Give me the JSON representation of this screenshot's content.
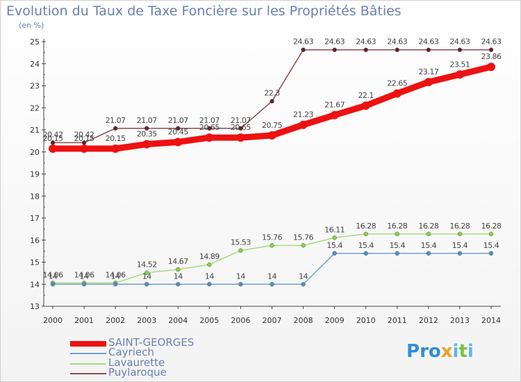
{
  "header": {
    "title": "Evolution du Taux de Taxe Foncière sur les Propriétés Bâties",
    "unit": "(en %)"
  },
  "logo": {
    "text": "Proxiti"
  },
  "chart_data": {
    "type": "line",
    "title": "Evolution du Taux de Taxe Foncière sur les Propriétés Bâties",
    "ylabel": "(en %)",
    "xlabel": "",
    "x": [
      "2000",
      "2001",
      "2002",
      "2003",
      "2004",
      "2005",
      "2006",
      "2007",
      "2008",
      "2009",
      "2010",
      "2011",
      "2012",
      "2013",
      "2014"
    ],
    "ylim": [
      13,
      25
    ],
    "yticks": [
      "13",
      "14",
      "15",
      "16",
      "17",
      "18",
      "19",
      "20",
      "21",
      "22",
      "23",
      "24",
      "25"
    ],
    "grid": false,
    "legend": "bottom-left",
    "series": [
      {
        "name": "SAINT-GEORGES",
        "color": "#ee1111",
        "values": [
          20.15,
          20.15,
          20.15,
          20.35,
          20.45,
          20.65,
          20.65,
          20.75,
          21.23,
          21.67,
          22.1,
          22.65,
          23.17,
          23.51,
          23.86
        ],
        "labels": [
          "20.15",
          "20.15",
          "20.15",
          "20.35",
          "20.45",
          "20.65",
          "20.65",
          "20.75",
          "21.23",
          "21.67",
          "22.1",
          "22.65",
          "23.17",
          "23.51",
          "23.86"
        ]
      },
      {
        "name": "Cayriech",
        "color": "#6fa2cf",
        "values": [
          14,
          14,
          14,
          14,
          14,
          14,
          14,
          14,
          14,
          15.4,
          15.4,
          15.4,
          15.4,
          15.4,
          15.4
        ],
        "labels": [
          "14",
          "14",
          "14",
          "14",
          "14",
          "14",
          "14",
          "14",
          "14",
          "15.4",
          "15.4",
          "15.4",
          "15.4",
          "15.4",
          "15.4"
        ]
      },
      {
        "name": "Lavaurette",
        "color": "#a6dc7e",
        "values": [
          14.06,
          14.06,
          14.06,
          14.52,
          14.67,
          14.89,
          15.53,
          15.76,
          15.76,
          16.11,
          16.28,
          16.28,
          16.28,
          16.28,
          16.28
        ],
        "labels": [
          "14.06",
          "14.06",
          "14.06",
          "14.52",
          "14.67",
          "14.89",
          "15.53",
          "15.76",
          "15.76",
          "16.11",
          "16.28",
          "16.28",
          "16.28",
          "16.28",
          "16.28"
        ]
      },
      {
        "name": "Puylaroque",
        "color": "#8a4a50",
        "values": [
          20.42,
          20.42,
          21.07,
          21.07,
          21.07,
          21.07,
          21.07,
          22.3,
          24.63,
          24.63,
          24.63,
          24.63,
          24.63,
          24.63,
          24.63
        ],
        "labels": [
          "20.42",
          "20.42",
          "21.07",
          "21.07",
          "21.07",
          "21.07",
          "21.07",
          "22.3",
          "24.63",
          "24.63",
          "24.63",
          "24.63",
          "24.63",
          "24.63",
          "24.63"
        ]
      }
    ]
  }
}
